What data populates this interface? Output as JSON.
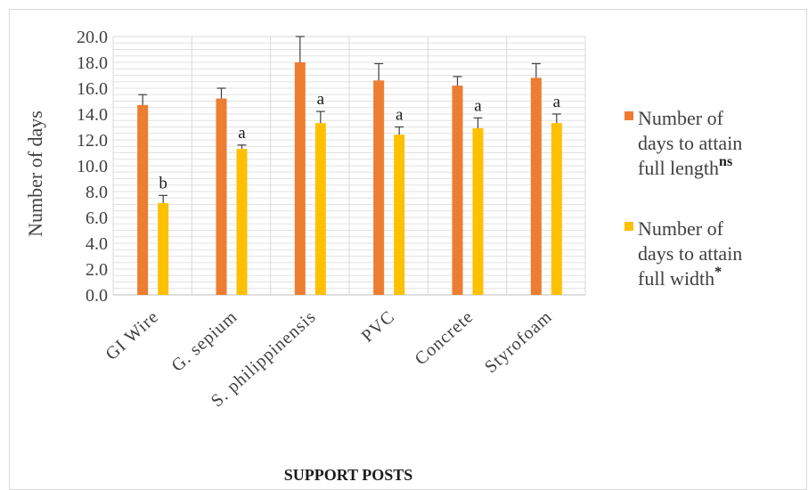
{
  "chart_data": {
    "type": "bar",
    "title": "",
    "xlabel": "SUPPORT POSTS",
    "ylabel": "Number of days",
    "ylim": [
      0,
      20
    ],
    "ytick_step": 2,
    "ytick_labels": [
      "0.0",
      "2.0",
      "4.0",
      "6.0",
      "8.0",
      "10.0",
      "12.0",
      "14.0",
      "16.0",
      "18.0",
      "20.0"
    ],
    "categories": [
      "GI Wire",
      "G. sepium",
      "S. philippinensis",
      "PVC",
      "Concrete",
      "Styrofoam"
    ],
    "grid": true,
    "legend_position": "right",
    "series": [
      {
        "name": "Number of days to attain full length",
        "legend_lines": [
          "Number of",
          "days to attain",
          "full length"
        ],
        "superscript": "ns",
        "color": "#ed7d31",
        "values": [
          14.7,
          15.2,
          18.0,
          16.6,
          16.2,
          16.8
        ],
        "errors": [
          0.8,
          0.8,
          2.0,
          1.3,
          0.7,
          1.1
        ],
        "labels": [
          "",
          "",
          "",
          "",
          "",
          ""
        ]
      },
      {
        "name": "Number of days to attain full width",
        "legend_lines": [
          "Number of",
          "days to attain",
          "full width"
        ],
        "superscript": "*",
        "color": "#ffc000",
        "values": [
          7.1,
          11.3,
          13.3,
          12.4,
          12.9,
          13.3
        ],
        "errors": [
          0.6,
          0.3,
          0.9,
          0.6,
          0.8,
          0.7
        ],
        "labels": [
          "b",
          "a",
          "a",
          "a",
          "a",
          "a"
        ]
      }
    ]
  }
}
